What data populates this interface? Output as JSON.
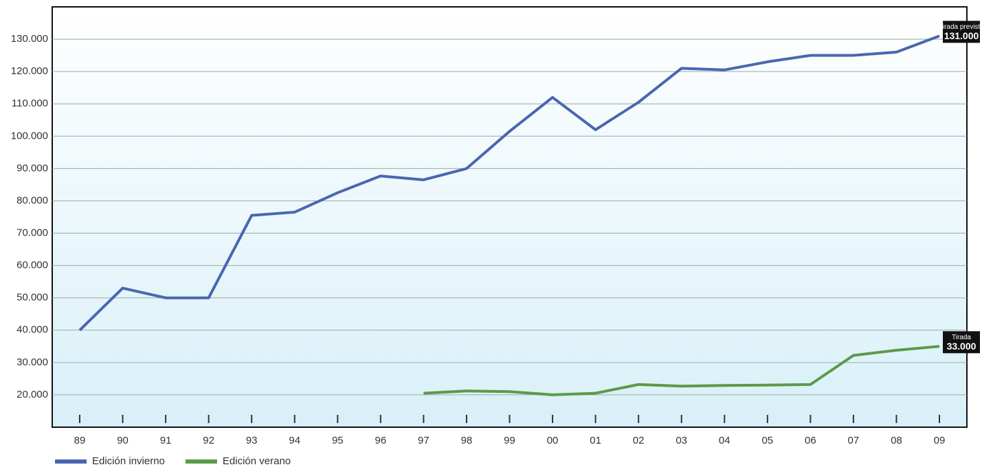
{
  "chart_data": {
    "type": "line",
    "categories": [
      "89",
      "90",
      "91",
      "92",
      "93",
      "94",
      "95",
      "96",
      "97",
      "98",
      "99",
      "00",
      "01",
      "02",
      "03",
      "04",
      "05",
      "06",
      "07",
      "08",
      "09"
    ],
    "series": [
      {
        "name": "Edición invierno",
        "color": "#4a66b0",
        "values": [
          40000,
          53000,
          50000,
          50000,
          75500,
          76500,
          82500,
          87700,
          86500,
          90000,
          101500,
          112000,
          102000,
          110500,
          121000,
          120500,
          123000,
          125000,
          125000,
          126000,
          131000
        ]
      },
      {
        "name": "Edición verano",
        "color": "#5b9a47",
        "values": [
          null,
          null,
          null,
          null,
          null,
          null,
          null,
          null,
          20500,
          21200,
          21000,
          20000,
          20500,
          23200,
          22700,
          22900,
          23000,
          23200,
          32200,
          33800,
          35000
        ]
      }
    ],
    "ylim": [
      10000,
      140000
    ],
    "yticks": [
      {
        "value": 20000,
        "label": "20.000"
      },
      {
        "value": 30000,
        "label": "30.000"
      },
      {
        "value": 40000,
        "label": "40.000"
      },
      {
        "value": 50000,
        "label": "50.000"
      },
      {
        "value": 60000,
        "label": "60.000"
      },
      {
        "value": 70000,
        "label": "70.000"
      },
      {
        "value": 80000,
        "label": "80.000"
      },
      {
        "value": 90000,
        "label": "90.000"
      },
      {
        "value": 100000,
        "label": "100.000"
      },
      {
        "value": 110000,
        "label": "110.000"
      },
      {
        "value": 120000,
        "label": "120.000"
      },
      {
        "value": 130000,
        "label": "130.000"
      }
    ],
    "grid": true,
    "annotations": [
      {
        "title": "Tirada prevista",
        "text": "131.000"
      },
      {
        "title": "Tirada",
        "text": "33.000"
      }
    ]
  }
}
